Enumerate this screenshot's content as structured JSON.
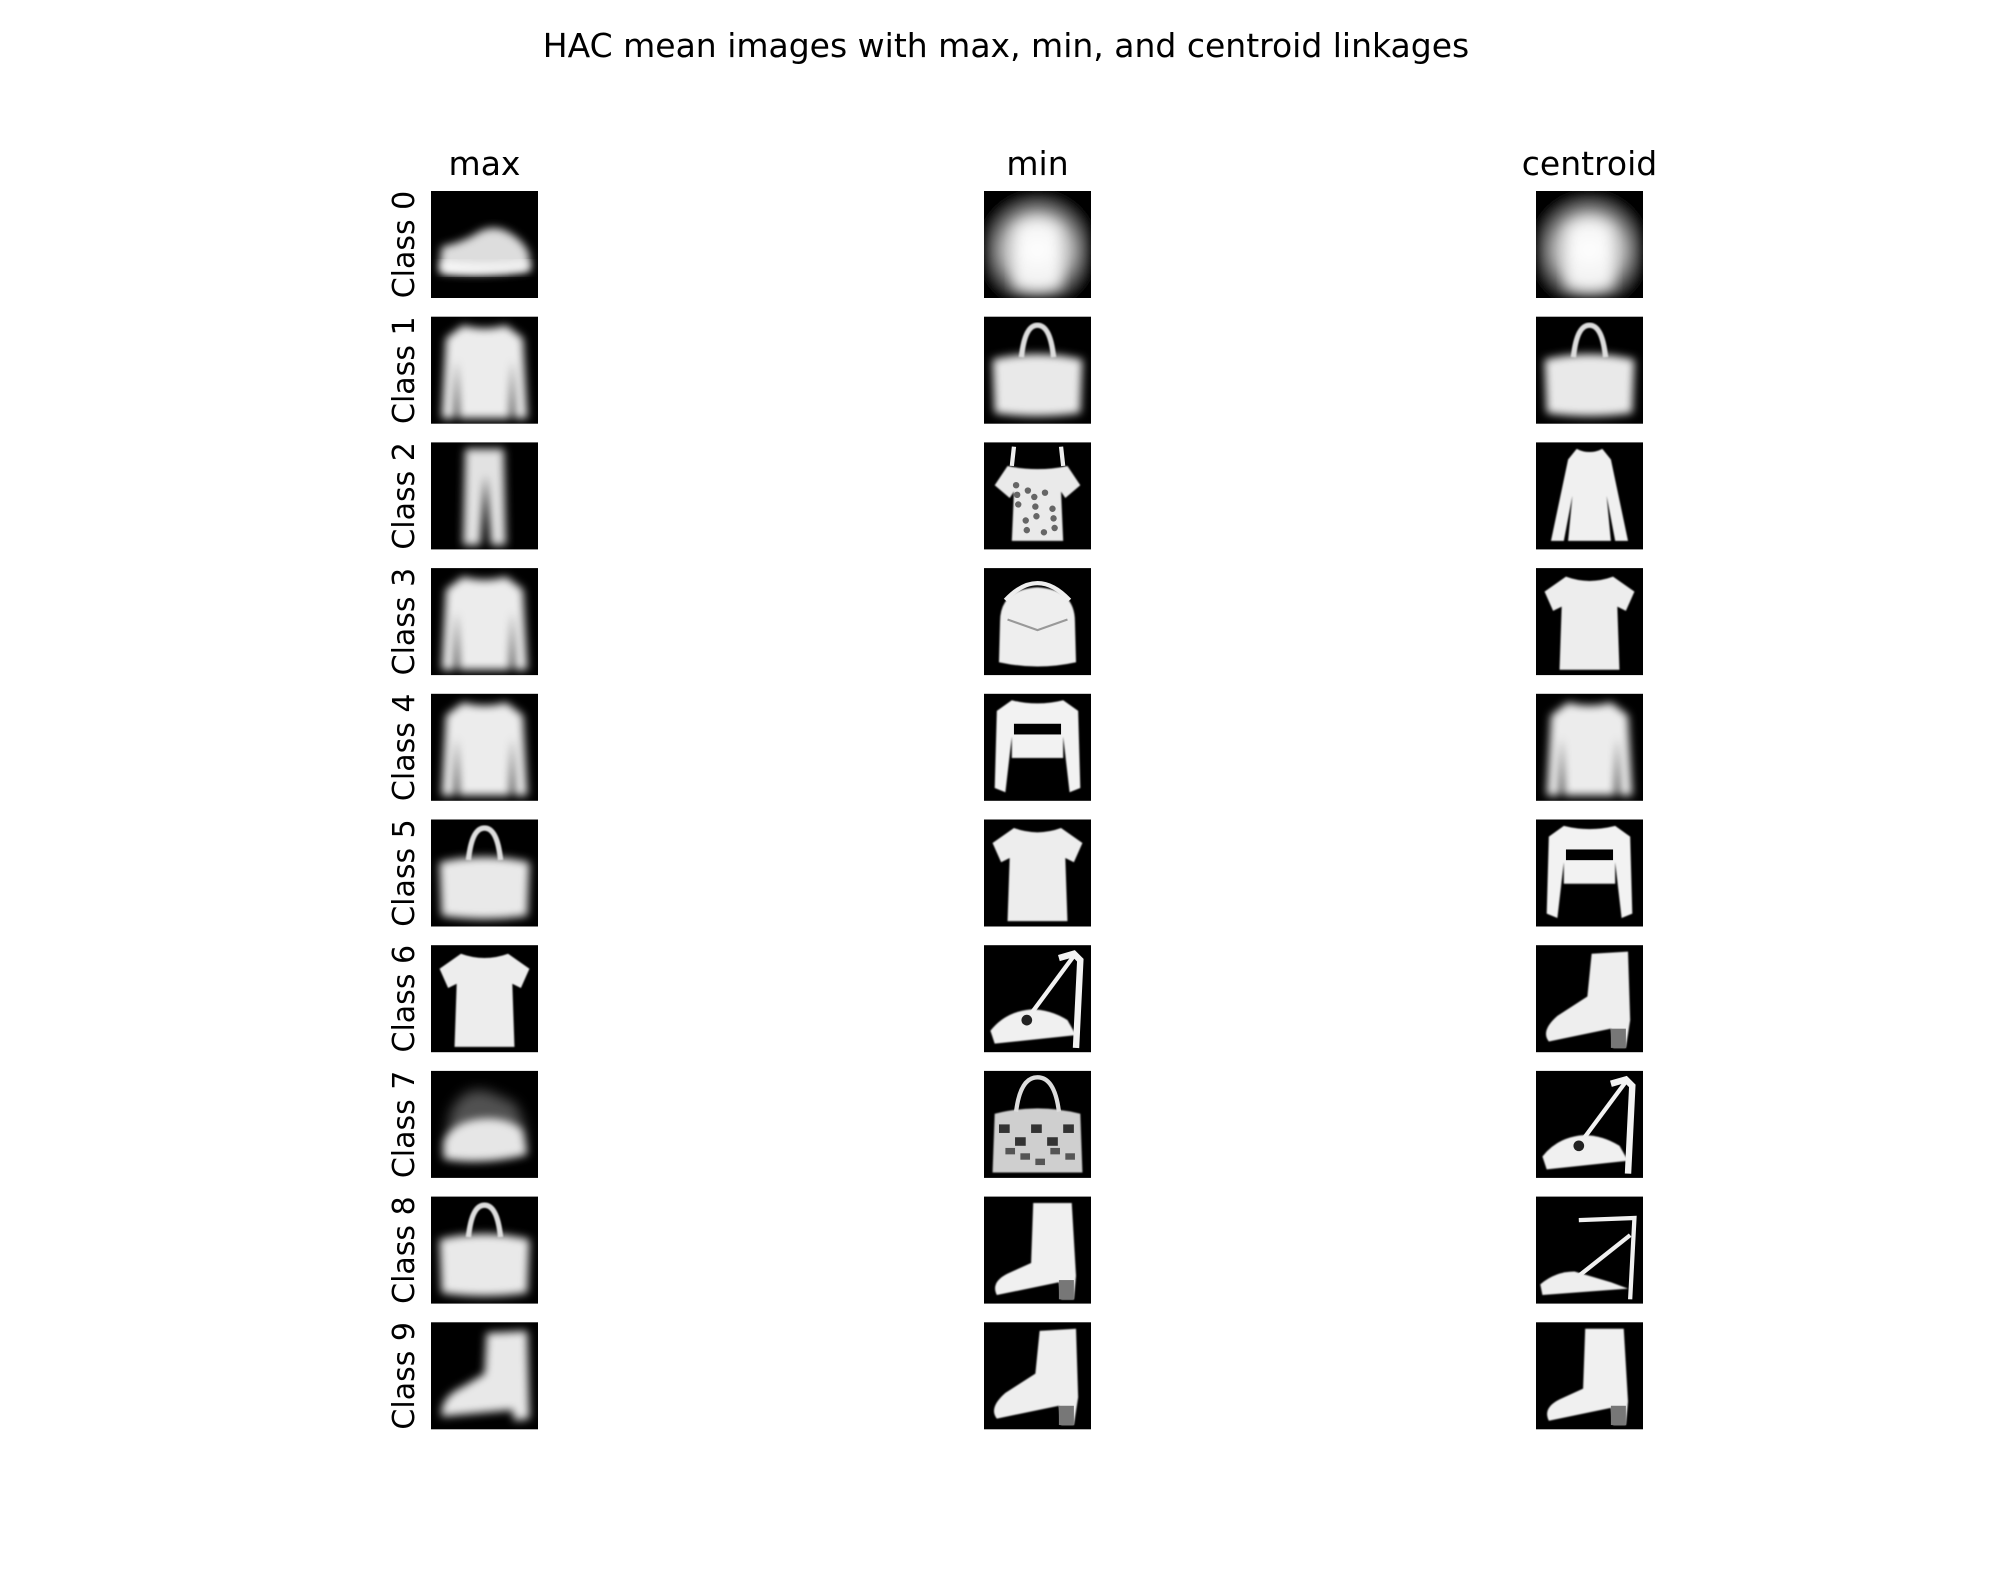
{
  "chart_data": {
    "type": "image-grid",
    "title": "HAC mean images with max, min, and centroid linkages",
    "columns": [
      "max",
      "min",
      "centroid"
    ],
    "rows": [
      "Class 0",
      "Class 1",
      "Class 2",
      "Class 3",
      "Class 4",
      "Class 5",
      "Class 6",
      "Class 7",
      "Class 8",
      "Class 9"
    ],
    "cells": [
      [
        "sneaker",
        "blob",
        "blob"
      ],
      [
        "pullover",
        "bag",
        "bag"
      ],
      [
        "trouser",
        "top",
        "dress"
      ],
      [
        "pullover",
        "bag-round",
        "tshirt"
      ],
      [
        "pullover",
        "shirt-open",
        "pullover"
      ],
      [
        "bag",
        "tshirt",
        "shirt-open"
      ],
      [
        "tshirt",
        "sandal",
        "ankle-boot-heel"
      ],
      [
        "sneaker-faint",
        "bag-pattern",
        "sandal"
      ],
      [
        "bag",
        "boot",
        "sandal-strap"
      ],
      [
        "ankle-boot",
        "ankle-boot-heel",
        "boot"
      ]
    ],
    "cell_style": {
      "background": "#000000",
      "foreground": "#ffffff"
    }
  }
}
